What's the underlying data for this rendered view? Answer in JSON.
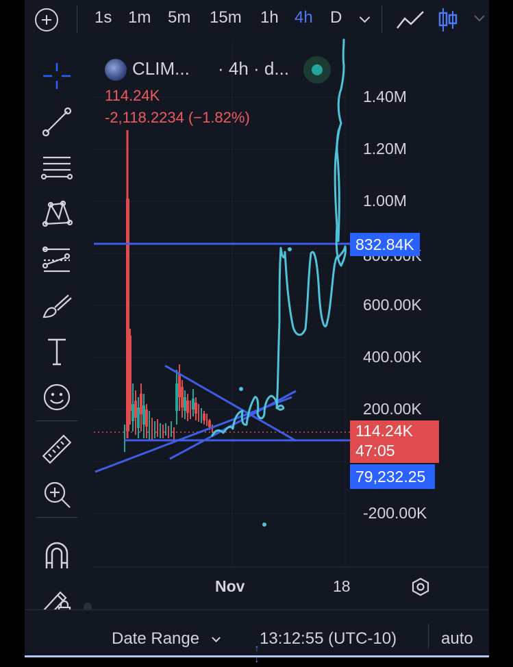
{
  "toolbar": {
    "timeframes": [
      "1s",
      "1m",
      "5m",
      "15m",
      "1h",
      "4h",
      "D"
    ],
    "active_timeframe": "4h",
    "chart_type_icons": [
      "line-chart-icon",
      "candlestick-icon"
    ]
  },
  "drawing_tools": [
    "crosshair-icon",
    "trend-line-icon",
    "horizontal-lines-icon",
    "pattern-icon",
    "forecast-icon",
    "brush-icon",
    "text-icon",
    "emoji-icon",
    "ruler-icon",
    "zoom-in-icon",
    "magnet-icon",
    "lock-pencil-icon",
    "unlock-icon"
  ],
  "legend": {
    "symbol": "CLIM...",
    "interval": "· 4h · d...",
    "price": "114.24K",
    "change": "-2,118.2234 (−1.82%)"
  },
  "price_axis": {
    "labels": [
      "1.40M",
      "1.20M",
      "1.00M",
      "600.00K",
      "400.00K",
      "200.00K",
      "-200.00K"
    ],
    "hidden_label_fragment": "800.00K",
    "badges": {
      "line_top": "832.84K",
      "last_price": "114.24K",
      "countdown": "47:05",
      "line_bottom": "79,232.25"
    }
  },
  "time_axis": {
    "labels": [
      "Nov",
      "18"
    ]
  },
  "bottom_bar": {
    "date_range": "Date Range",
    "clock": "13:12:55 (UTC-10)",
    "scale_mode": "auto"
  },
  "colors": {
    "background": "#131722",
    "accent_blue": "#2962ff",
    "down_red": "#e04b4e",
    "up_green": "#26a69a",
    "drawing_cyan": "#4fc3d9"
  }
}
